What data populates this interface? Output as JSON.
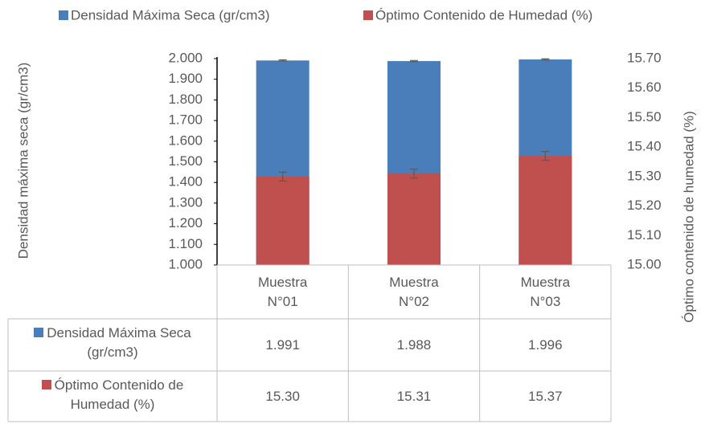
{
  "chart_data": {
    "type": "bar",
    "categories": [
      "Muestra N°01",
      "Muestra N°02",
      "Muestra N°03"
    ],
    "series": [
      {
        "name": "Densidad Máxima Seca (gr/cm3)",
        "color": "#4a7ebb",
        "values": [
          1.991,
          1.988,
          1.996
        ],
        "value_labels": [
          "1.991",
          "1.988",
          "1.996"
        ],
        "errors": [
          0.003,
          0.003,
          0.003
        ]
      },
      {
        "name": "Óptimo Contenido de Humedad (%)",
        "color": "#c0504d",
        "values": [
          15.3,
          15.31,
          15.37
        ],
        "value_labels": [
          "15.30",
          "15.31",
          "15.37"
        ],
        "errors": [
          0.015,
          0.015,
          0.015
        ],
        "axis": "y2"
      }
    ],
    "y_label": "Densidad máxima seca (gr/cm3)",
    "y2_label": "Óptimo contenido de humedad (%)",
    "ylim": [
      1.0,
      2.0
    ],
    "yticks": [
      {
        "value": 1.0,
        "label": "1.000"
      },
      {
        "value": 1.1,
        "label": "1.100"
      },
      {
        "value": 1.2,
        "label": "1.200"
      },
      {
        "value": 1.3,
        "label": "1.300"
      },
      {
        "value": 1.4,
        "label": "1.400"
      },
      {
        "value": 1.5,
        "label": "1.500"
      },
      {
        "value": 1.6,
        "label": "1.600"
      },
      {
        "value": 1.7,
        "label": "1.700"
      },
      {
        "value": 1.8,
        "label": "1.800"
      },
      {
        "value": 1.9,
        "label": "1.900"
      },
      {
        "value": 2.0,
        "label": "2.000"
      }
    ],
    "y2lim": [
      15.0,
      15.7
    ],
    "y2ticks": [
      {
        "value": 15.0,
        "label": "15.00"
      },
      {
        "value": 15.1,
        "label": "15.10"
      },
      {
        "value": 15.2,
        "label": "15.20"
      },
      {
        "value": 15.3,
        "label": "15.30"
      },
      {
        "value": 15.4,
        "label": "15.40"
      },
      {
        "value": 15.5,
        "label": "15.50"
      },
      {
        "value": 15.6,
        "label": "15.60"
      },
      {
        "value": 15.7,
        "label": "15.70"
      }
    ],
    "legend": "top",
    "grid": false
  }
}
